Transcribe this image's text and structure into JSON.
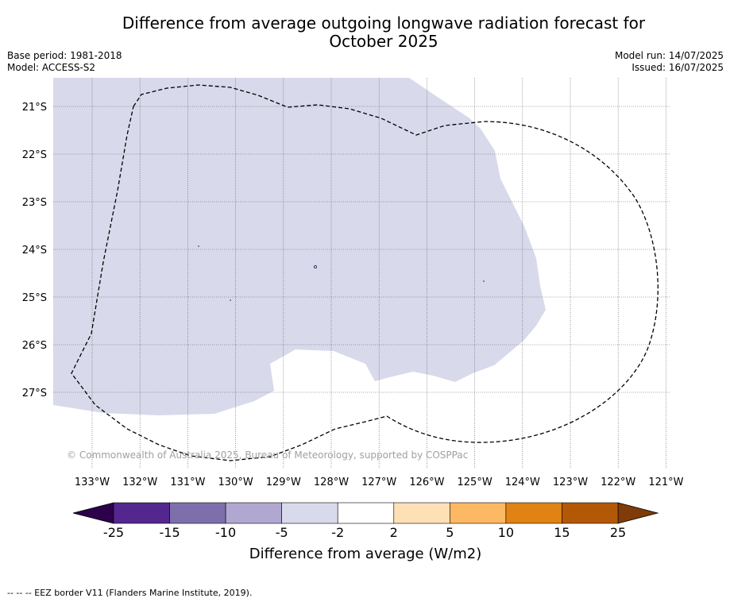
{
  "title_line1": "Difference from average outgoing longwave radiation forecast for",
  "title_line2": "October 2025",
  "base_period": "Base period: 1981-2018",
  "model": "Model: ACCESS-S2",
  "model_run": "Model run: 14/07/2025",
  "issued": "Issued: 16/07/2025",
  "lat_labels": [
    "21°S",
    "22°S",
    "23°S",
    "24°S",
    "25°S",
    "26°S",
    "27°S"
  ],
  "lon_labels": [
    "133°W",
    "132°W",
    "131°W",
    "130°W",
    "129°W",
    "128°W",
    "127°W",
    "126°W",
    "125°W",
    "124°W",
    "123°W",
    "122°W",
    "121°W"
  ],
  "copyright": "© Commonwealth of Australia 2025, Bureau of Meteorology, supported by COSPPac",
  "colorbar": {
    "title": "Difference from average (W/m2)",
    "tick_labels": [
      "-25",
      "-15",
      "-10",
      "-5",
      "-2",
      "2",
      "5",
      "10",
      "15",
      "25"
    ],
    "colors": [
      "#54278f",
      "#7e6fac",
      "#b0a8d1",
      "#d8d9ea",
      "#ffffff",
      "#fee0b6",
      "#fdb863",
      "#e08214",
      "#b35806"
    ],
    "under_color": "#2d004b",
    "over_color": "#7f3b08"
  },
  "footer": "-- -- -- EEZ border V11 (Flanders Marine Institute, 2019)."
}
